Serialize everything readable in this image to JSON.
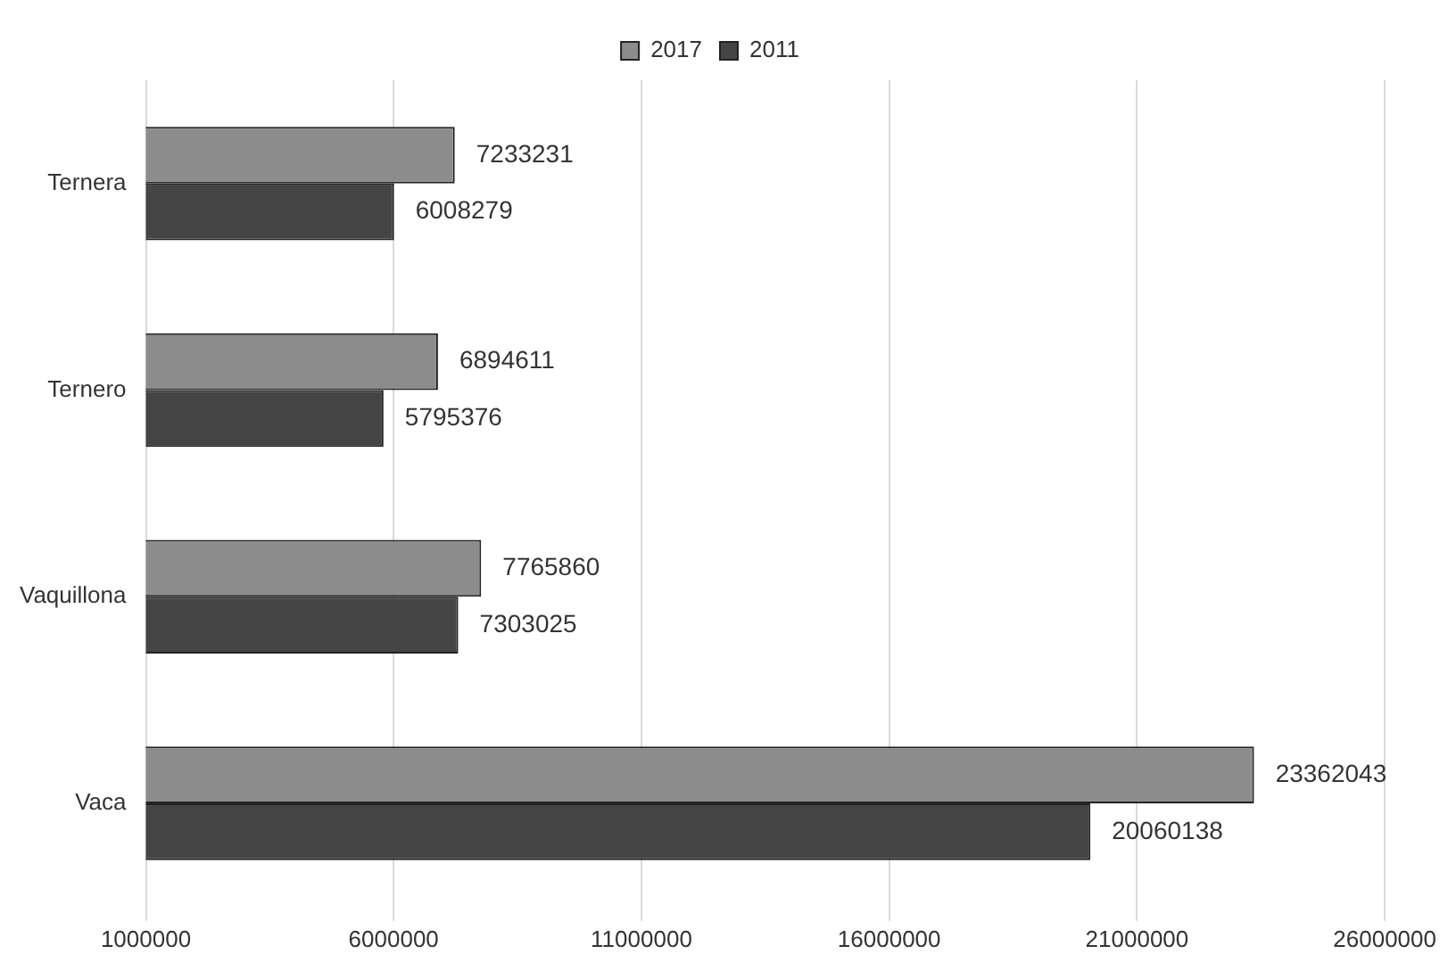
{
  "chart_data": {
    "type": "bar",
    "orientation": "horizontal",
    "categories": [
      "Ternera",
      "Ternero",
      "Vaquillona",
      "Vaca"
    ],
    "series": [
      {
        "name": "2017",
        "color": "#8c8c8c",
        "values": [
          7233231,
          6894611,
          7765860,
          23362043
        ]
      },
      {
        "name": "2011",
        "color": "#454545",
        "values": [
          6008279,
          5795376,
          7303025,
          20060138
        ]
      }
    ],
    "xlim": [
      1000000,
      26000000
    ],
    "xticks": [
      1000000,
      6000000,
      11000000,
      16000000,
      21000000,
      26000000
    ],
    "grid": "x",
    "legend": "top",
    "data_labels": true
  }
}
